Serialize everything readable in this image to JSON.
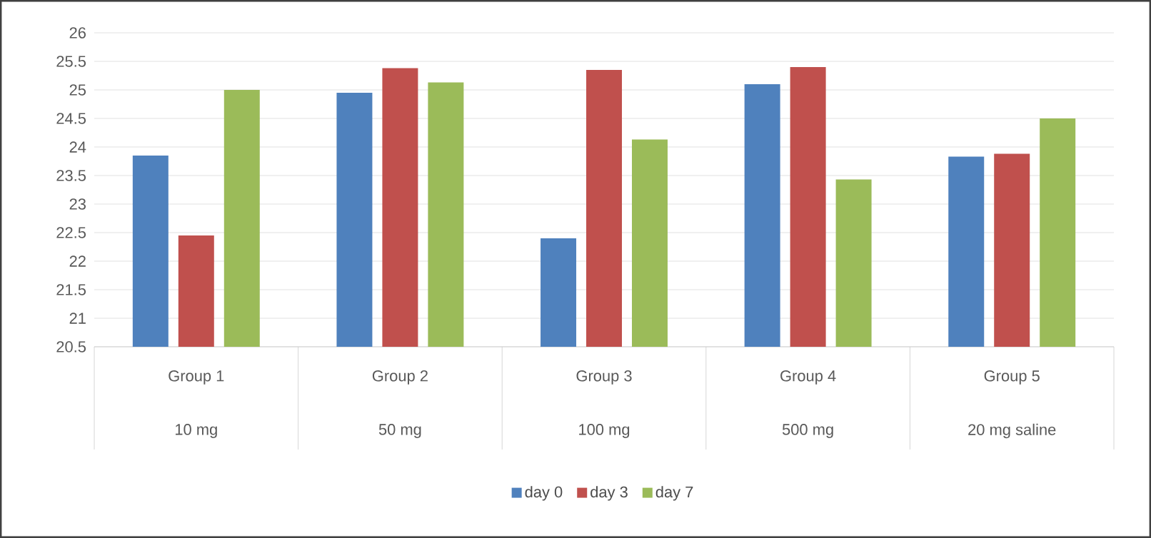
{
  "chart_data": {
    "type": "bar",
    "categories": [
      "Group 1",
      "Group 2",
      "Group 3",
      "Group 4",
      "Group 5"
    ],
    "annotations": [
      "10 mg",
      "50 mg",
      "100 mg",
      "500 mg",
      "20 mg saline"
    ],
    "series": [
      {
        "name": "day 0",
        "color": "#4f81bd",
        "values": [
          23.85,
          24.95,
          22.4,
          25.1,
          23.83
        ]
      },
      {
        "name": "day 3",
        "color": "#c0504d",
        "values": [
          22.45,
          25.38,
          25.35,
          25.4,
          23.88
        ]
      },
      {
        "name": "day 7",
        "color": "#9bbb59",
        "values": [
          25.0,
          25.13,
          24.13,
          23.43,
          24.5
        ]
      }
    ],
    "ylim": [
      20.5,
      26
    ],
    "yticks": [
      20.5,
      21,
      21.5,
      22,
      22.5,
      23,
      23.5,
      24,
      24.5,
      25,
      25.5,
      26
    ],
    "grid": "y",
    "legend": "bottom"
  }
}
